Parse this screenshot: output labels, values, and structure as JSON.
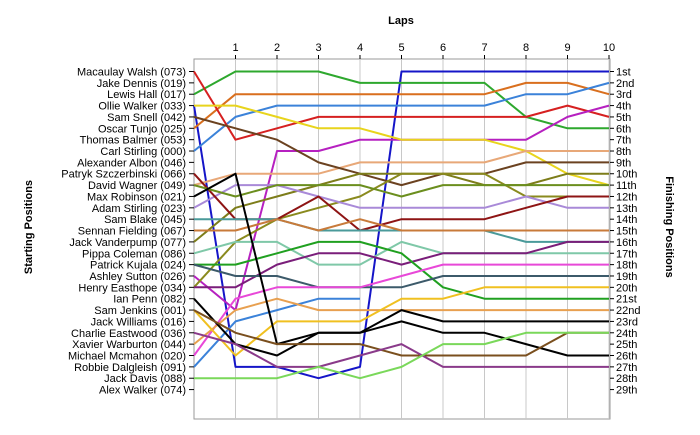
{
  "chart_data": {
    "type": "line",
    "title": "",
    "xlabel": "Laps",
    "ylabel_left": "Starting Positions",
    "ylabel_right": "Finishing Positions",
    "x": [
      0,
      1,
      2,
      3,
      4,
      5,
      6,
      7,
      8,
      9,
      10
    ],
    "x_tick_labels": [
      "1",
      "2",
      "3",
      "4",
      "5",
      "6",
      "7",
      "8",
      "9",
      "10"
    ],
    "y_range": [
      1,
      29
    ],
    "y_inverted": true,
    "grid": "vertical lines at each lap",
    "starting_labels": [
      "Macaulay Walsh (073)",
      "Jake Dennis (019)",
      "Lewis Hall (017)",
      "Ollie Walker (033)",
      "Sam Snell (042)",
      "Oscar Tunjo (025)",
      "Thomas Balmer (053)",
      "Carl Stirling (000)",
      "Alexander Albon (046)",
      "Patryk Szczerbinski (066)",
      "David Wagner (049)",
      "Max Robinson (021)",
      "Adam Stirling (023)",
      "Sam Blake (045)",
      "Sennan Fielding (067)",
      "Jack Vanderpump (077)",
      "Pippa Coleman (086)",
      "Patrick Kujala (024)",
      "Ashley Sutton (026)",
      "Henry Easthope (034)",
      "Ian Penn (082)",
      "Sam Jenkins (001)",
      "Jack Williams (016)",
      "Charlie Eastwood (036)",
      "Xavier Warburton (044)",
      "Michael Mcmahon (020)",
      "Robbie Dalgleish (091)",
      "Jack Davis (088)",
      "Alex Walker (074)"
    ],
    "finishing_labels": [
      "1st",
      "2nd",
      "3rd",
      "4th",
      "5th",
      "6th",
      "7th",
      "8th",
      "9th",
      "10th",
      "11th",
      "12th",
      "13th",
      "14th",
      "15th",
      "16th",
      "17th",
      "18th",
      "19th",
      "20th",
      "21st",
      "22nd",
      "23rd",
      "24th",
      "25th",
      "26th",
      "27th",
      "28th",
      "29th"
    ],
    "series": [
      {
        "color": "#1515c8",
        "positions": [
          4,
          27,
          27,
          28,
          27,
          1,
          1,
          1,
          1,
          1,
          1
        ]
      },
      {
        "color": "#2ea82e",
        "positions": [
          3,
          1,
          1,
          1,
          2,
          2,
          2,
          2,
          5,
          6,
          6
        ]
      },
      {
        "color": "#d96f1e",
        "positions": [
          6,
          3,
          3,
          3,
          3,
          3,
          3,
          3,
          2,
          2,
          3
        ]
      },
      {
        "color": "#3b82d9",
        "positions": [
          8,
          5,
          4,
          4,
          4,
          4,
          4,
          4,
          3,
          3,
          2
        ]
      },
      {
        "color": "#d62020",
        "positions": [
          1,
          7,
          6,
          5,
          5,
          5,
          5,
          5,
          5,
          4,
          5
        ]
      },
      {
        "color": "#b620c0",
        "positions": [
          19,
          22,
          8,
          8,
          7,
          7,
          7,
          7,
          7,
          5,
          4
        ]
      },
      {
        "color": "#e8d41c",
        "positions": [
          4,
          4,
          5,
          6,
          6,
          7,
          7,
          7,
          8,
          10,
          11
        ]
      },
      {
        "color": "#e8a878",
        "positions": [
          11,
          10,
          10,
          10,
          9,
          9,
          9,
          9,
          8,
          8,
          8
        ]
      },
      {
        "color": "#6b4220",
        "positions": [
          5,
          6,
          7,
          9,
          10,
          11,
          10,
          10,
          9,
          9,
          9
        ]
      },
      {
        "color": "#7d7d1a",
        "positions": [
          16,
          13,
          12,
          11,
          10,
          10,
          10,
          11,
          11,
          10,
          10
        ]
      },
      {
        "color": "#8a8a1e",
        "positions": [
          20,
          16,
          14,
          13,
          12,
          10,
          10,
          10,
          12,
          12,
          12
        ]
      },
      {
        "color": "#a98ad8",
        "positions": [
          13,
          11,
          11,
          12,
          13,
          13,
          13,
          13,
          12,
          13,
          13
        ]
      },
      {
        "color": "#8e1414",
        "positions": [
          10,
          14,
          14,
          12,
          15,
          14,
          14,
          14,
          13,
          12,
          12
        ]
      },
      {
        "color": "#6b8e1e",
        "positions": [
          11,
          12,
          11,
          11,
          11,
          12,
          11,
          11,
          11,
          11,
          11
        ]
      },
      {
        "color": "#4a9a9a",
        "positions": [
          14,
          14,
          14,
          15,
          15,
          15,
          15,
          15,
          16,
          16,
          16
        ]
      },
      {
        "color": "#c87a3a",
        "positions": [
          15,
          15,
          14,
          15,
          14,
          15,
          15,
          15,
          15,
          15,
          15
        ]
      },
      {
        "color": "#7fc8a8",
        "positions": [
          17,
          16,
          16,
          18,
          18,
          16,
          17,
          17,
          17,
          17,
          17
        ]
      },
      {
        "color": "#7a1e7a",
        "positions": [
          20,
          20,
          18,
          17,
          17,
          18,
          17,
          17,
          17,
          16,
          16
        ]
      },
      {
        "color": "#20a020",
        "positions": [
          18,
          18,
          17,
          16,
          16,
          17,
          20,
          21,
          21,
          21,
          21
        ]
      },
      {
        "color": "#3c5a6a",
        "positions": [
          18,
          19,
          19,
          20,
          20,
          20,
          19,
          19,
          19,
          19,
          19
        ]
      },
      {
        "color": "#e848d8",
        "positions": [
          26,
          21,
          20,
          20,
          20,
          19,
          18,
          18,
          18,
          18,
          18
        ]
      },
      {
        "color": "#3b82d9",
        "positions": [
          27,
          23,
          22,
          21,
          21
        ]
      },
      {
        "color": "#e8a050",
        "positions": [
          25,
          22,
          21,
          22,
          22,
          22,
          22,
          22,
          22,
          22,
          22
        ]
      },
      {
        "color": "#f0c020",
        "positions": [
          22,
          26,
          23,
          23,
          23,
          21,
          21,
          20,
          20,
          20,
          20
        ]
      },
      {
        "color": "#000000",
        "positions": [
          12,
          10,
          25,
          24,
          24,
          23,
          24,
          24,
          25,
          26,
          26
        ]
      },
      {
        "color": "#000000",
        "positions": [
          21,
          25,
          26,
          24,
          24,
          22,
          23,
          23,
          23,
          23,
          23
        ]
      },
      {
        "color": "#7a4f1e",
        "positions": [
          22,
          24,
          25,
          25,
          25,
          26,
          26,
          26,
          26,
          24,
          24
        ]
      },
      {
        "color": "#8a3a8a",
        "positions": [
          24,
          25,
          27,
          27,
          26,
          25,
          27,
          27,
          27,
          27,
          27
        ]
      },
      {
        "color": "#7ad85a",
        "positions": [
          28,
          28,
          28,
          27,
          28,
          27,
          25,
          25,
          24,
          24,
          24
        ]
      }
    ]
  }
}
